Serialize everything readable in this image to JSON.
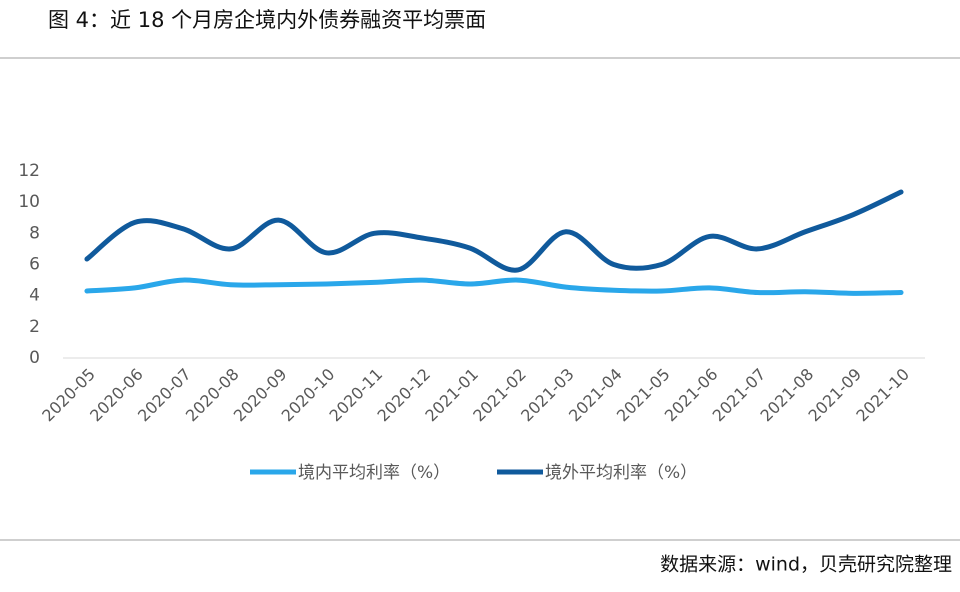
{
  "chart_data": {
    "type": "line",
    "title": "图 4：近 18 个月房企境内外债券融资平均票面",
    "categories": [
      "2020-05",
      "2020-06",
      "2020-07",
      "2020-08",
      "2020-09",
      "2020-10",
      "2020-11",
      "2020-12",
      "2021-01",
      "2021-02",
      "2021-03",
      "2021-04",
      "2021-05",
      "2021-06",
      "2021-07",
      "2021-08",
      "2021-09",
      "2021-10"
    ],
    "series": [
      {
        "name": "境内平均利率（%）",
        "color": "#2aa7ea",
        "values": [
          4.3,
          4.5,
          5.0,
          4.7,
          4.7,
          4.75,
          4.85,
          5.0,
          4.75,
          5.0,
          4.55,
          4.35,
          4.3,
          4.5,
          4.2,
          4.25,
          4.15,
          4.2
        ]
      },
      {
        "name": "境外平均利率（%）",
        "color": "#105a9c",
        "values": [
          6.35,
          8.7,
          8.3,
          7.0,
          8.85,
          6.75,
          8.0,
          7.7,
          7.05,
          5.65,
          8.1,
          6.0,
          6.0,
          7.8,
          7.0,
          8.1,
          9.2,
          10.65
        ]
      }
    ],
    "ylim": [
      0,
      12
    ],
    "yticks": [
      0,
      2,
      4,
      6,
      8,
      10,
      12
    ],
    "legend": "bottom",
    "smooth": true
  },
  "source": "数据来源：wind，贝壳研究院整理"
}
